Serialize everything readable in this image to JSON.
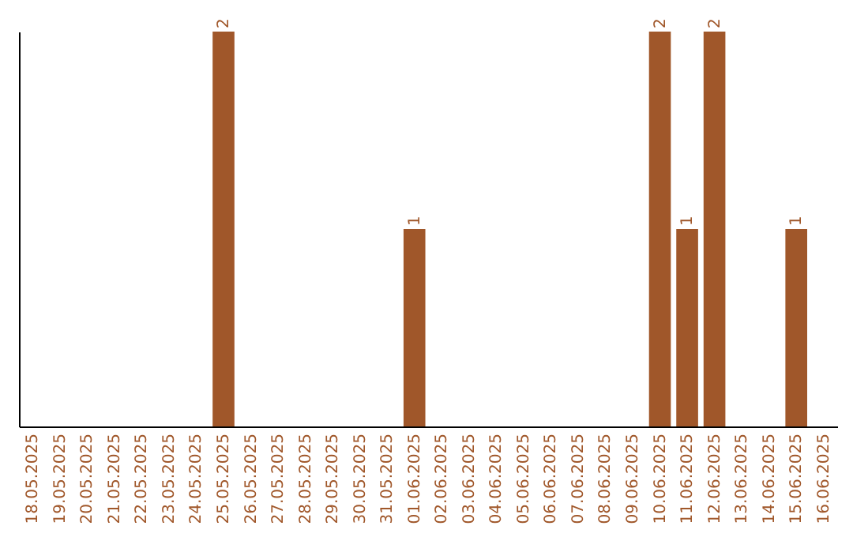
{
  "chart_data": {
    "type": "bar",
    "categories": [
      "18.05.2025",
      "19.05.2025",
      "20.05.2025",
      "21.05.2025",
      "22.05.2025",
      "23.05.2025",
      "24.05.2025",
      "25.05.2025",
      "26.05.2025",
      "27.05.2025",
      "28.05.2025",
      "29.05.2025",
      "30.05.2025",
      "31.05.2025",
      "01.06.2025",
      "02.06.2025",
      "03.06.2025",
      "04.06.2025",
      "05.06.2025",
      "06.06.2025",
      "07.06.2025",
      "08.06.2025",
      "09.06.2025",
      "10.06.2025",
      "11.06.2025",
      "12.06.2025",
      "13.06.2025",
      "14.06.2025",
      "15.06.2025",
      "16.06.2025"
    ],
    "values": [
      0,
      0,
      0,
      0,
      0,
      0,
      0,
      2,
      0,
      0,
      0,
      0,
      0,
      0,
      1,
      0,
      0,
      0,
      0,
      0,
      0,
      0,
      0,
      2,
      1,
      2,
      0,
      0,
      1,
      0
    ],
    "value_labels": [
      null,
      null,
      null,
      null,
      null,
      null,
      null,
      "2",
      null,
      null,
      null,
      null,
      null,
      null,
      "1",
      null,
      null,
      null,
      null,
      null,
      null,
      null,
      null,
      "2",
      "1",
      "2",
      null,
      null,
      "1",
      null
    ],
    "color": "#a0572a",
    "grid": false
  }
}
